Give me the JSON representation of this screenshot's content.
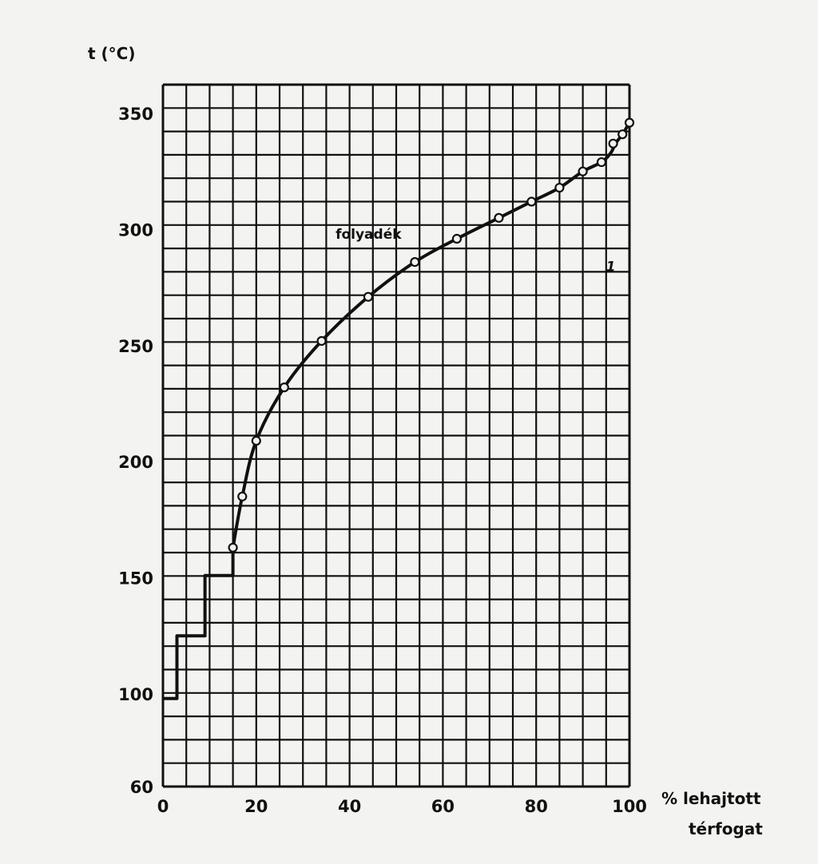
{
  "chart_data": {
    "type": "line",
    "ylabel": "t (°C)",
    "xlabel_line1": "% lehajtott",
    "xlabel_line2": "térfogat",
    "xlim": [
      0,
      100
    ],
    "ylim": [
      60,
      360
    ],
    "grid": true,
    "x_ticks": [
      0,
      20,
      40,
      60,
      80,
      100
    ],
    "y_ticks": [
      60,
      100,
      150,
      200,
      250,
      300,
      350
    ],
    "annotations": [
      {
        "text": "folyadék",
        "x": 37,
        "y": 296
      },
      {
        "text": "1",
        "x": 95,
        "y": 282
      }
    ],
    "series": [
      {
        "style": "step",
        "x": [
          0,
          3,
          3,
          9,
          9,
          15,
          15
        ],
        "y": [
          98,
          98,
          125,
          125,
          151,
          151,
          163
        ]
      },
      {
        "style": "curve",
        "x": [
          15,
          17,
          20,
          26,
          34,
          44,
          54,
          63,
          72,
          79,
          85,
          90,
          94,
          96,
          97,
          98.5,
          100
        ],
        "y": [
          163,
          185,
          209,
          232,
          252,
          271,
          286,
          296,
          305,
          312,
          318,
          325,
          329,
          333,
          337,
          341,
          346
        ]
      }
    ],
    "markers": {
      "x": [
        15,
        17,
        20,
        26,
        34,
        44,
        54,
        63,
        72,
        79,
        85,
        90,
        94,
        96.5,
        98.5,
        100
      ],
      "y": [
        163,
        185,
        209,
        232,
        252,
        271,
        286,
        296,
        305,
        312,
        318,
        325,
        329,
        337,
        341,
        346
      ]
    }
  }
}
